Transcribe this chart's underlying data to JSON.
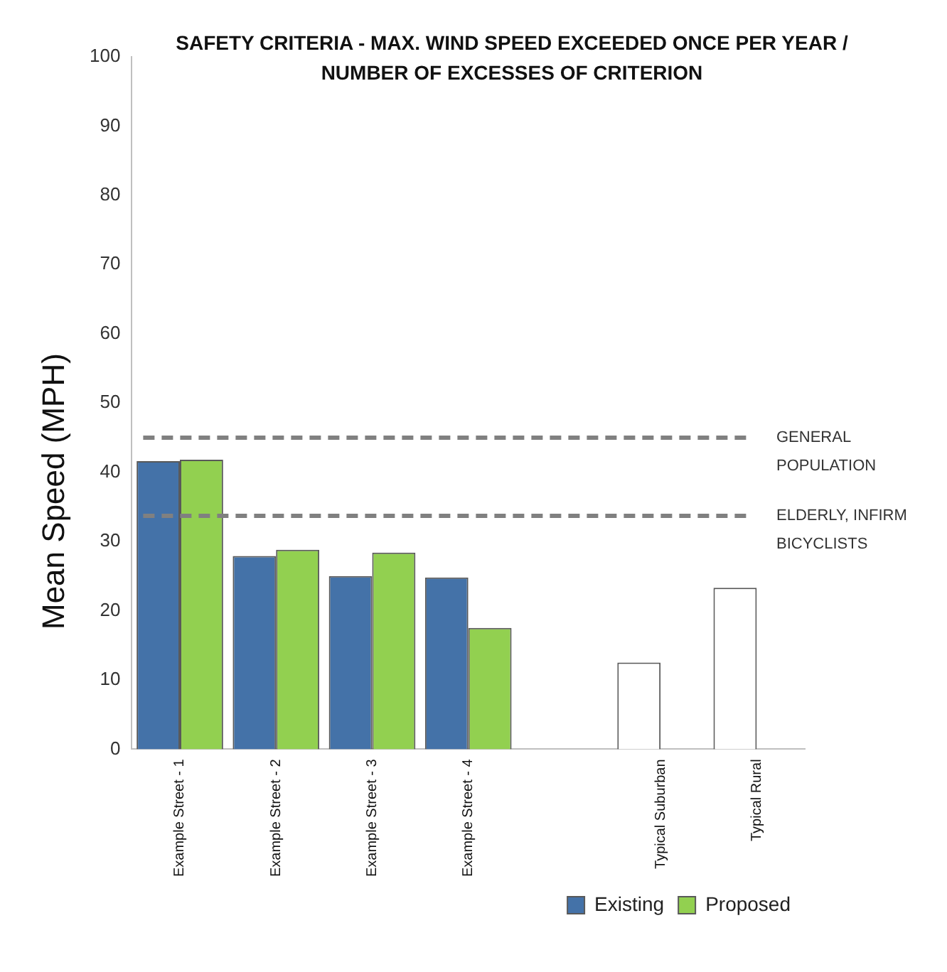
{
  "chart_data": {
    "type": "bar",
    "title": "SAFETY CRITERIA - MAX. WIND SPEED EXCEEDED ONCE PER YEAR / NUMBER OF EXCESSES OF CRITERION",
    "ylabel": "Mean Speed (MPH)",
    "categories": [
      "Example Street - 1",
      "Example Street - 2",
      "Example Street - 3",
      "Example Street - 4",
      null,
      "Typical Suburban",
      "Typical Rural"
    ],
    "series": [
      {
        "name": "Existing",
        "color": "#4472a8",
        "colors": [
          "#4472a8",
          "#4472a8",
          "#4472a8",
          "#4472a8",
          "#4472a8",
          "#ffffff",
          "#ffffff"
        ],
        "values": [
          41.6,
          27.9,
          25,
          24.8,
          null,
          12.5,
          23.3
        ]
      },
      {
        "name": "Proposed",
        "color": "#92d050",
        "values": [
          41.8,
          28.8,
          28.4,
          17.5,
          null,
          null,
          null
        ]
      }
    ],
    "ylim": [
      0,
      100
    ],
    "yticks": [
      0,
      10,
      20,
      30,
      40,
      50,
      60,
      70,
      80,
      90,
      100
    ],
    "grid": false,
    "legend": "bottom right",
    "ref_lines": [
      {
        "axis": "y",
        "value": 45,
        "label": "GENERAL POPULATION",
        "color": "#808080",
        "line_style": "dashed"
      },
      {
        "axis": "y",
        "value": 33.7,
        "label": "ELDERLY, INFIRM BICYCLISTS",
        "color": "#808080",
        "line_style": "dashed"
      }
    ]
  }
}
